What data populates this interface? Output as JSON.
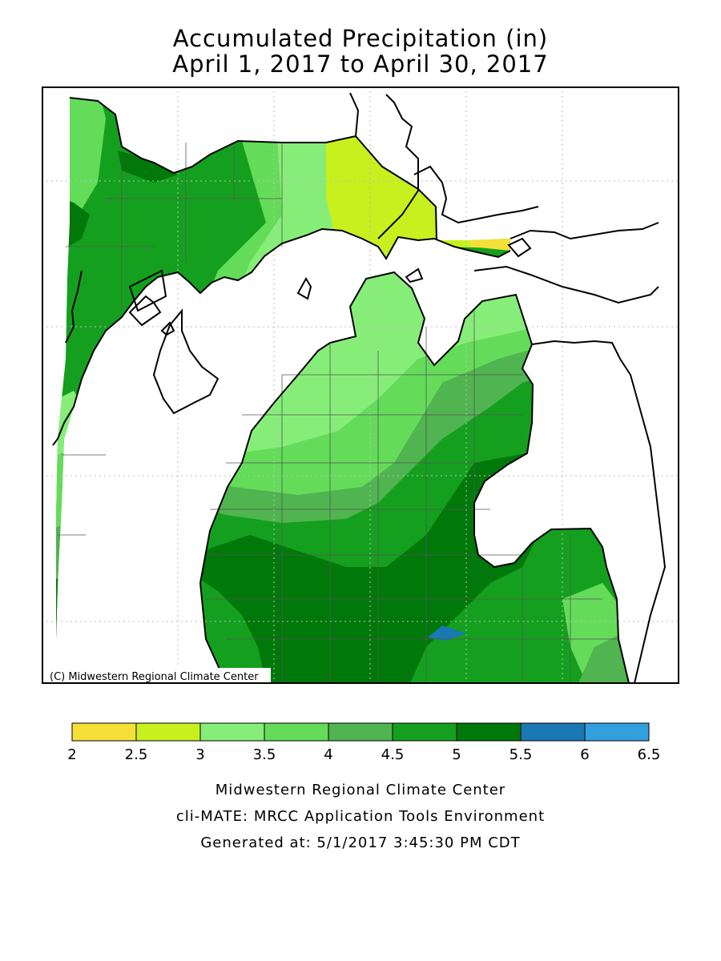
{
  "title": {
    "line1": "Accumulated Precipitation (in)",
    "line2": "April 1, 2017 to April 30, 2017"
  },
  "map": {
    "copyright": "(C) Midwestern Regional Climate Center",
    "bins": [
      {
        "min": 2,
        "max": 2.5,
        "color": "#f5e03a"
      },
      {
        "min": 2.5,
        "max": 3,
        "color": "#c8f01e"
      },
      {
        "min": 3,
        "max": 3.5,
        "color": "#86ee78"
      },
      {
        "min": 3.5,
        "max": 4,
        "color": "#64dc5a"
      },
      {
        "min": 4,
        "max": 4.5,
        "color": "#50b450"
      },
      {
        "min": 4.5,
        "max": 5,
        "color": "#14a01e"
      },
      {
        "min": 5,
        "max": 5.5,
        "color": "#00780a"
      },
      {
        "min": 5.5,
        "max": 6,
        "color": "#1a78b4"
      },
      {
        "min": 6,
        "max": 6.5,
        "color": "#32a0dc"
      }
    ]
  },
  "legend": {
    "ticks": [
      "2",
      "2.5",
      "3",
      "3.5",
      "4",
      "4.5",
      "5",
      "5.5",
      "6",
      "6.5"
    ]
  },
  "footer": {
    "line1": "Midwestern Regional Climate Center",
    "line2": "cli-MATE: MRCC Application Tools Environment",
    "line3": "Generated at: 5/1/2017 3:45:30 PM CDT"
  }
}
